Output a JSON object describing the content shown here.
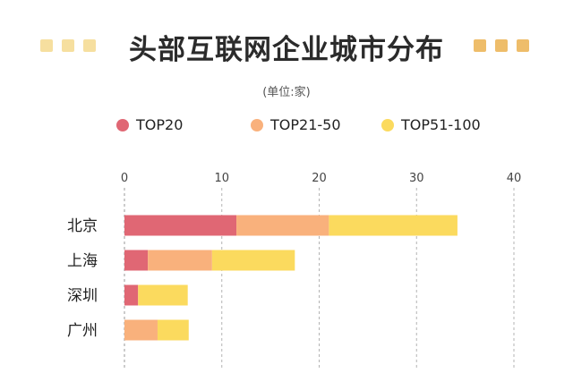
{
  "title": "头部互联网企业城市分布",
  "unit": "(单位:家)",
  "colors": {
    "TOP20": "#e06774",
    "TOP21-50": "#f9b17c",
    "TOP51-100": "#fbda5e",
    "deco_left": "#f6df9f",
    "deco_right": "#eebd6a",
    "axis": "#999999",
    "grid": "#b3b3b3"
  },
  "legend": [
    "TOP20",
    "TOP21-50",
    "TOP51-100"
  ],
  "chart_data": {
    "type": "bar",
    "orientation": "horizontal",
    "stacked": true,
    "categories": [
      "北京",
      "上海",
      "深圳",
      "广州"
    ],
    "series": [
      {
        "name": "TOP20",
        "values": [
          11.5,
          2.4,
          1.4,
          0
        ]
      },
      {
        "name": "TOP21-50",
        "values": [
          9.5,
          6.6,
          0,
          3.4
        ]
      },
      {
        "name": "TOP51-100",
        "values": [
          13.2,
          8.5,
          5.1,
          3.2
        ]
      }
    ],
    "x_ticks": [
      0,
      10,
      20,
      30,
      40
    ],
    "xlim": [
      0,
      40
    ],
    "grid": true,
    "legend_position": "top"
  }
}
